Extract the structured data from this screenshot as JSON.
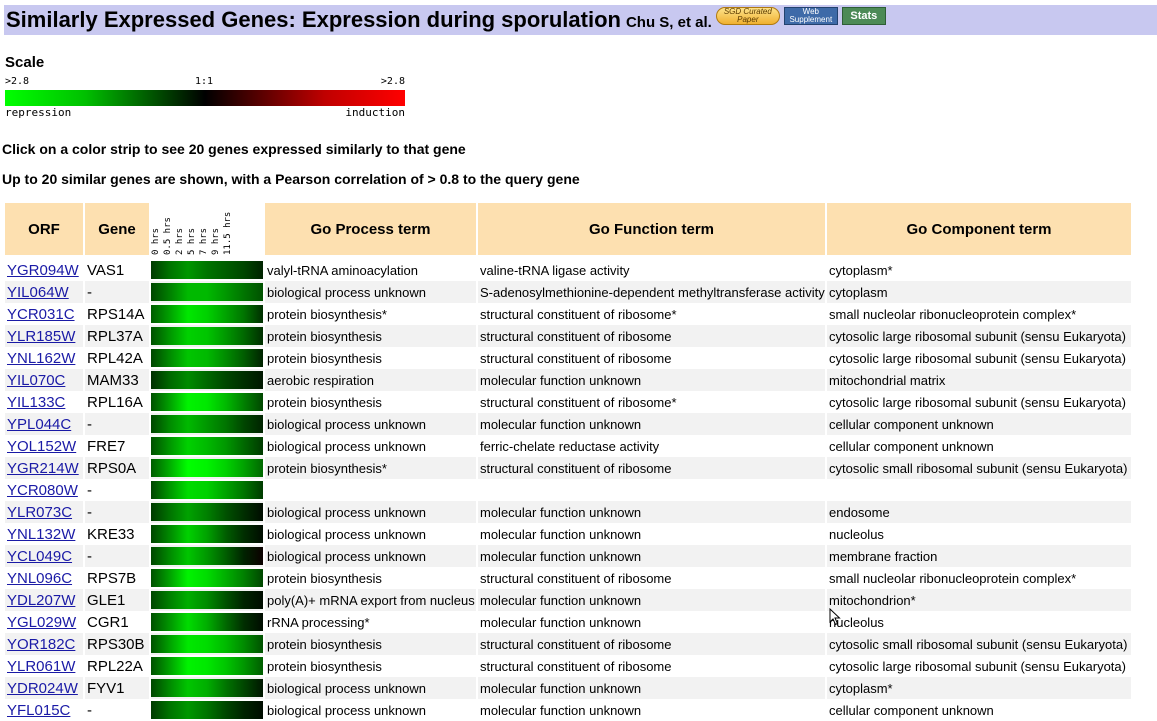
{
  "header": {
    "title": "Similarly Expressed Genes: Expression during sporulation",
    "author": "Chu S, et al.",
    "badges": {
      "sgd": "SGD Curated Paper",
      "web": "Web Supplement",
      "stats": "Stats"
    }
  },
  "scale": {
    "title": "Scale",
    "left_tick": ">2.8",
    "mid_tick": "1:1",
    "right_tick": ">2.8",
    "left_label": "repression",
    "right_label": "induction"
  },
  "instructions": {
    "line1": "Click on a color strip to see 20 genes expressed similarly to that gene",
    "line2": "Up to 20 similar genes are shown, with a Pearson correlation of > 0.8 to the query gene"
  },
  "table": {
    "headers": {
      "orf": "ORF",
      "gene": "Gene",
      "process": "Go Process term",
      "function": "Go Function term",
      "component": "Go Component term"
    },
    "timepoints": [
      "0 hrs",
      "0.5 hrs",
      "2 hrs",
      "5 hrs",
      "7 hrs",
      "9 hrs",
      "11.5 hrs"
    ],
    "rows": [
      {
        "orf": "YGR094W",
        "gene": "VAS1",
        "process": "valyl-tRNA aminoacylation",
        "function": "valine-tRNA ligase activity",
        "component": "cytoplasm*",
        "expr": [
          -0.5,
          -1.0,
          -1.3,
          -1.0,
          -0.8,
          -0.6,
          -0.3
        ]
      },
      {
        "orf": "YIL064W",
        "gene": "-",
        "process": "biological process unknown",
        "function": "S-adenosylmethionine-dependent methyltransferase activity",
        "component": "cytoplasm",
        "expr": [
          -0.6,
          -1.1,
          -1.6,
          -1.6,
          -1.3,
          -1.0,
          -0.7
        ]
      },
      {
        "orf": "YCR031C",
        "gene": "RPS14A",
        "process": "protein biosynthesis*",
        "function": "structural constituent of ribosome*",
        "component": "small nucleolar ribonucleoprotein complex*",
        "expr": [
          -0.8,
          -1.4,
          -2.0,
          -1.8,
          -1.4,
          -1.0,
          -0.4
        ]
      },
      {
        "orf": "YLR185W",
        "gene": "RPL37A",
        "process": "protein biosynthesis",
        "function": "structural constituent of ribosome",
        "component": "cytosolic large ribosomal subunit (sensu Eukaryota)",
        "expr": [
          -0.7,
          -1.3,
          -1.8,
          -1.7,
          -1.3,
          -0.9,
          -0.4
        ]
      },
      {
        "orf": "YNL162W",
        "gene": "RPL42A",
        "process": "protein biosynthesis",
        "function": "structural constituent of ribosome",
        "component": "cytosolic large ribosomal subunit (sensu Eukaryota)",
        "expr": [
          -0.6,
          -1.2,
          -1.7,
          -1.6,
          -1.2,
          -0.8,
          -0.3
        ]
      },
      {
        "orf": "YIL070C",
        "gene": "MAM33",
        "process": "aerobic respiration",
        "function": "molecular function unknown",
        "component": "mitochondrial matrix",
        "expr": [
          -0.4,
          -0.9,
          -1.2,
          -0.9,
          -0.6,
          -0.4,
          -0.2
        ]
      },
      {
        "orf": "YIL133C",
        "gene": "RPL16A",
        "process": "protein biosynthesis",
        "function": "structural constituent of ribosome*",
        "component": "cytosolic large ribosomal subunit (sensu Eukaryota)",
        "expr": [
          -0.7,
          -1.4,
          -2.1,
          -2.0,
          -1.6,
          -1.1,
          -0.6
        ]
      },
      {
        "orf": "YPL044C",
        "gene": "-",
        "process": "biological process unknown",
        "function": "molecular function unknown",
        "component": "cellular component unknown",
        "expr": [
          -0.6,
          -1.2,
          -1.6,
          -1.3,
          -1.0,
          -0.6,
          -0.3
        ]
      },
      {
        "orf": "YOL152W",
        "gene": "FRE7",
        "process": "biological process unknown",
        "function": "ferric-chelate reductase activity",
        "component": "cellular component unknown",
        "expr": [
          -0.7,
          -1.3,
          -1.8,
          -1.6,
          -1.3,
          -0.9,
          -0.5
        ]
      },
      {
        "orf": "YGR214W",
        "gene": "RPS0A",
        "process": "protein biosynthesis*",
        "function": "structural constituent of ribosome",
        "component": "cytosolic small ribosomal subunit (sensu Eukaryota)",
        "expr": [
          -0.8,
          -1.5,
          -2.2,
          -2.1,
          -1.8,
          -1.4,
          -0.9
        ]
      },
      {
        "orf": "YCR080W",
        "gene": "-",
        "process": "",
        "function": "",
        "component": "",
        "expr": [
          -0.6,
          -1.3,
          -1.9,
          -1.8,
          -1.4,
          -1.0,
          -0.5
        ]
      },
      {
        "orf": "YLR073C",
        "gene": "-",
        "process": "biological process unknown",
        "function": "molecular function unknown",
        "component": "endosome",
        "expr": [
          -0.5,
          -1.0,
          -1.4,
          -1.1,
          -0.7,
          -0.4,
          -0.1
        ]
      },
      {
        "orf": "YNL132W",
        "gene": "KRE33",
        "process": "biological process unknown",
        "function": "molecular function unknown",
        "component": "nucleolus",
        "expr": [
          -0.6,
          -1.2,
          -1.8,
          -1.4,
          -0.8,
          -0.4,
          -0.1
        ]
      },
      {
        "orf": "YCL049C",
        "gene": "-",
        "process": "biological process unknown",
        "function": "molecular function unknown",
        "component": "membrane fraction",
        "expr": [
          -0.6,
          -1.2,
          -1.7,
          -1.3,
          -0.8,
          -0.3,
          0.1
        ]
      },
      {
        "orf": "YNL096C",
        "gene": "RPS7B",
        "process": "protein biosynthesis",
        "function": "structural constituent of ribosome",
        "component": "small nucleolar ribonucleoprotein complex*",
        "expr": [
          -0.7,
          -1.4,
          -2.1,
          -1.9,
          -1.5,
          -1.1,
          -0.6
        ]
      },
      {
        "orf": "YDL207W",
        "gene": "GLE1",
        "process": "poly(A)+ mRNA export from nucleus",
        "function": "molecular function unknown",
        "component": "mitochondrion*",
        "expr": [
          -0.6,
          -1.1,
          -1.5,
          -1.2,
          -0.7,
          -0.3,
          -0.1
        ]
      },
      {
        "orf": "YGL029W",
        "gene": "CGR1",
        "process": "rRNA processing*",
        "function": "molecular function unknown",
        "component": "nucleolus",
        "expr": [
          -0.7,
          -1.3,
          -1.9,
          -1.5,
          -0.9,
          -0.4,
          -0.1
        ]
      },
      {
        "orf": "YOR182C",
        "gene": "RPS30B",
        "process": "protein biosynthesis",
        "function": "structural constituent of ribosome",
        "component": "cytosolic small ribosomal subunit (sensu Eukaryota)",
        "expr": [
          -0.7,
          -1.4,
          -2.0,
          -1.9,
          -1.6,
          -1.2,
          -0.7
        ]
      },
      {
        "orf": "YLR061W",
        "gene": "RPL22A",
        "process": "protein biosynthesis",
        "function": "structural constituent of ribosome",
        "component": "cytosolic large ribosomal subunit (sensu Eukaryota)",
        "expr": [
          -0.7,
          -1.4,
          -2.1,
          -2.0,
          -1.7,
          -1.3,
          -0.8
        ]
      },
      {
        "orf": "YDR024W",
        "gene": "FYV1",
        "process": "biological process unknown",
        "function": "molecular function unknown",
        "component": "cytoplasm*",
        "expr": [
          -0.6,
          -1.2,
          -1.7,
          -1.5,
          -1.0,
          -0.6,
          -0.2
        ]
      },
      {
        "orf": "YFL015C",
        "gene": "-",
        "process": "biological process unknown",
        "function": "molecular function unknown",
        "component": "cellular component unknown",
        "expr": [
          -0.5,
          -1.0,
          -1.3,
          -1.0,
          -0.6,
          -0.3,
          -0.1
        ]
      }
    ]
  },
  "colors": {
    "title_bar": "#c8c8f0",
    "header_cell": "#fde0b0",
    "link": "#1a1aa6",
    "repression": "#00ff00",
    "induction": "#ff0000"
  }
}
